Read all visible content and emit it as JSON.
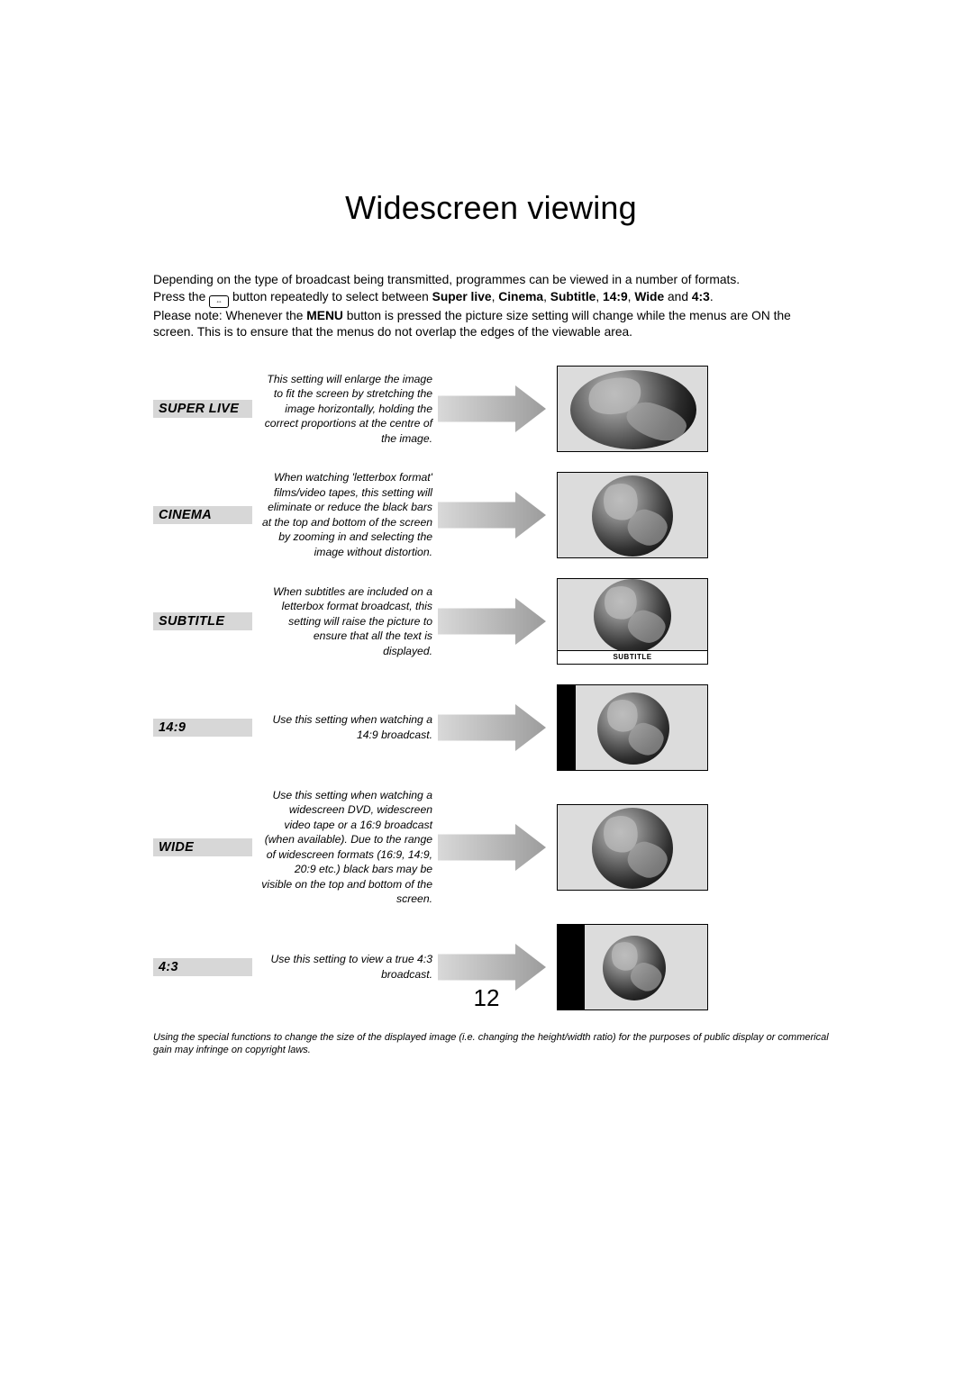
{
  "title": "Widescreen viewing",
  "intro": {
    "line1": "Depending on the type of broadcast being transmitted, programmes can be viewed in a number of formats.",
    "line2_a": "Press the ",
    "line2_b": " button repeatedly to select between ",
    "opt1": "Super live",
    "sep": ", ",
    "opt2": "Cinema",
    "opt3": "Subtitle",
    "opt4": "14:9",
    "opt5": "Wide",
    "and": " and ",
    "opt6": "4:3",
    "dot": ".",
    "line3_a": "Please note: Whenever the ",
    "menu": "MENU",
    "line3_b": " button is pressed the picture size setting will change while the menus are ON the screen. This is to ensure that the menus do not overlap the edges of the viewable area."
  },
  "modes": [
    {
      "label": "SUPER LIVE",
      "desc": "This setting will enlarge the image to fit the screen by stretching the image horizontally, holding the correct proportions at the centre of the image.",
      "tv": {
        "type": "full_stretch"
      }
    },
    {
      "label": "CINEMA",
      "desc": "When watching 'letterbox format' films/video tapes, this setting will eliminate or reduce the black bars at the top and bottom of the screen by zooming in and selecting the image without distortion.",
      "tv": {
        "type": "full"
      }
    },
    {
      "label": "SUBTITLE",
      "desc": "When subtitles are included on a letterbox format broadcast, this setting will raise the picture to ensure that all the text is displayed.",
      "tv": {
        "type": "subtitle",
        "strip_text": "SUBTITLE"
      }
    },
    {
      "label": "14:9",
      "desc": "Use this setting when watching a 14:9 broadcast.",
      "tv": {
        "type": "pillarbox_14_9"
      }
    },
    {
      "label": "WIDE",
      "desc": "Use this setting when watching a widescreen DVD, widescreen video tape or a 16:9 broadcast (when available). Due to the range of widescreen formats (16:9, 14:9, 20:9 etc.) black bars may be visible on the top and bottom of the screen.",
      "tv": {
        "type": "full"
      }
    },
    {
      "label": "4:3",
      "desc": "Use this setting to view a true 4:3 broadcast.",
      "tv": {
        "type": "pillarbox_4_3"
      }
    }
  ],
  "footnote": "Using the special functions to change the size of the displayed image (i.e. changing the height/width ratio) for the purposes of public display or commerical gain may infringe on copyright laws.",
  "page_number": "12",
  "colors": {
    "label_bg": "#d7d7d7",
    "arrow_light": "#d9d9d9",
    "arrow_dark": "#9c9c9c",
    "tv_bg": "#dcdcdc"
  },
  "arrow": {
    "width": 120,
    "height": 52
  }
}
